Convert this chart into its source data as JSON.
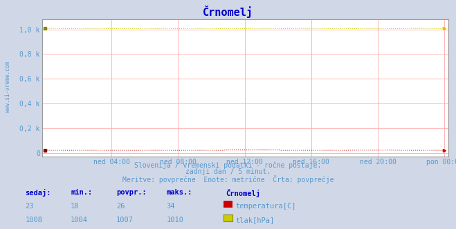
{
  "title": "Črnomelj",
  "title_color": "#0000cc",
  "background_color": "#d0d8e8",
  "plot_bg_color": "#ffffff",
  "grid_color": "#ffaaaa",
  "border_color": "#aaaaaa",
  "watermark": "www.si-vreme.com",
  "subtitle1": "Slovenija / vremenski podatki - ročne postaje.",
  "subtitle2": "zadnji dan / 5 minut.",
  "subtitle3": "Meritve: povprečne  Enote: metrične  Črta: povprečje",
  "subtitle_color": "#5599cc",
  "ytick_labels": [
    "0",
    "0,2 k",
    "0,4 k",
    "0,6 k",
    "0,8 k",
    "1,0 k"
  ],
  "ytick_vals": [
    0,
    200,
    400,
    600,
    800,
    1000
  ],
  "ylim": [
    -30,
    1080
  ],
  "xtick_labels": [
    "ned 04:00",
    "ned 08:00",
    "ned 12:00",
    "ned 16:00",
    "ned 20:00",
    "pon 00:00"
  ],
  "xtick_positions": [
    48,
    96,
    144,
    192,
    240,
    288
  ],
  "total_points": 289,
  "temp_color": "#cc0000",
  "tlak_color": "#cccc00",
  "legend_label_temp": "temperatura[C]",
  "legend_label_tlak": "tlak[hPa]",
  "table_headers": [
    "sedaj:",
    "min.:",
    "povpr.:",
    "maks.:"
  ],
  "table_header_color": "#0000cc",
  "temp_row": [
    "23",
    "18",
    "26",
    "34"
  ],
  "tlak_row": [
    "1008",
    "1004",
    "1007",
    "1010"
  ],
  "table_text_color": "#5599cc",
  "station_label": "Črnomelj",
  "temp_value_avg": 26,
  "tlak_value_avg": 1007,
  "temp_value_min": 18,
  "temp_value_max": 34,
  "tlak_value_min": 1004,
  "tlak_value_max": 1010
}
